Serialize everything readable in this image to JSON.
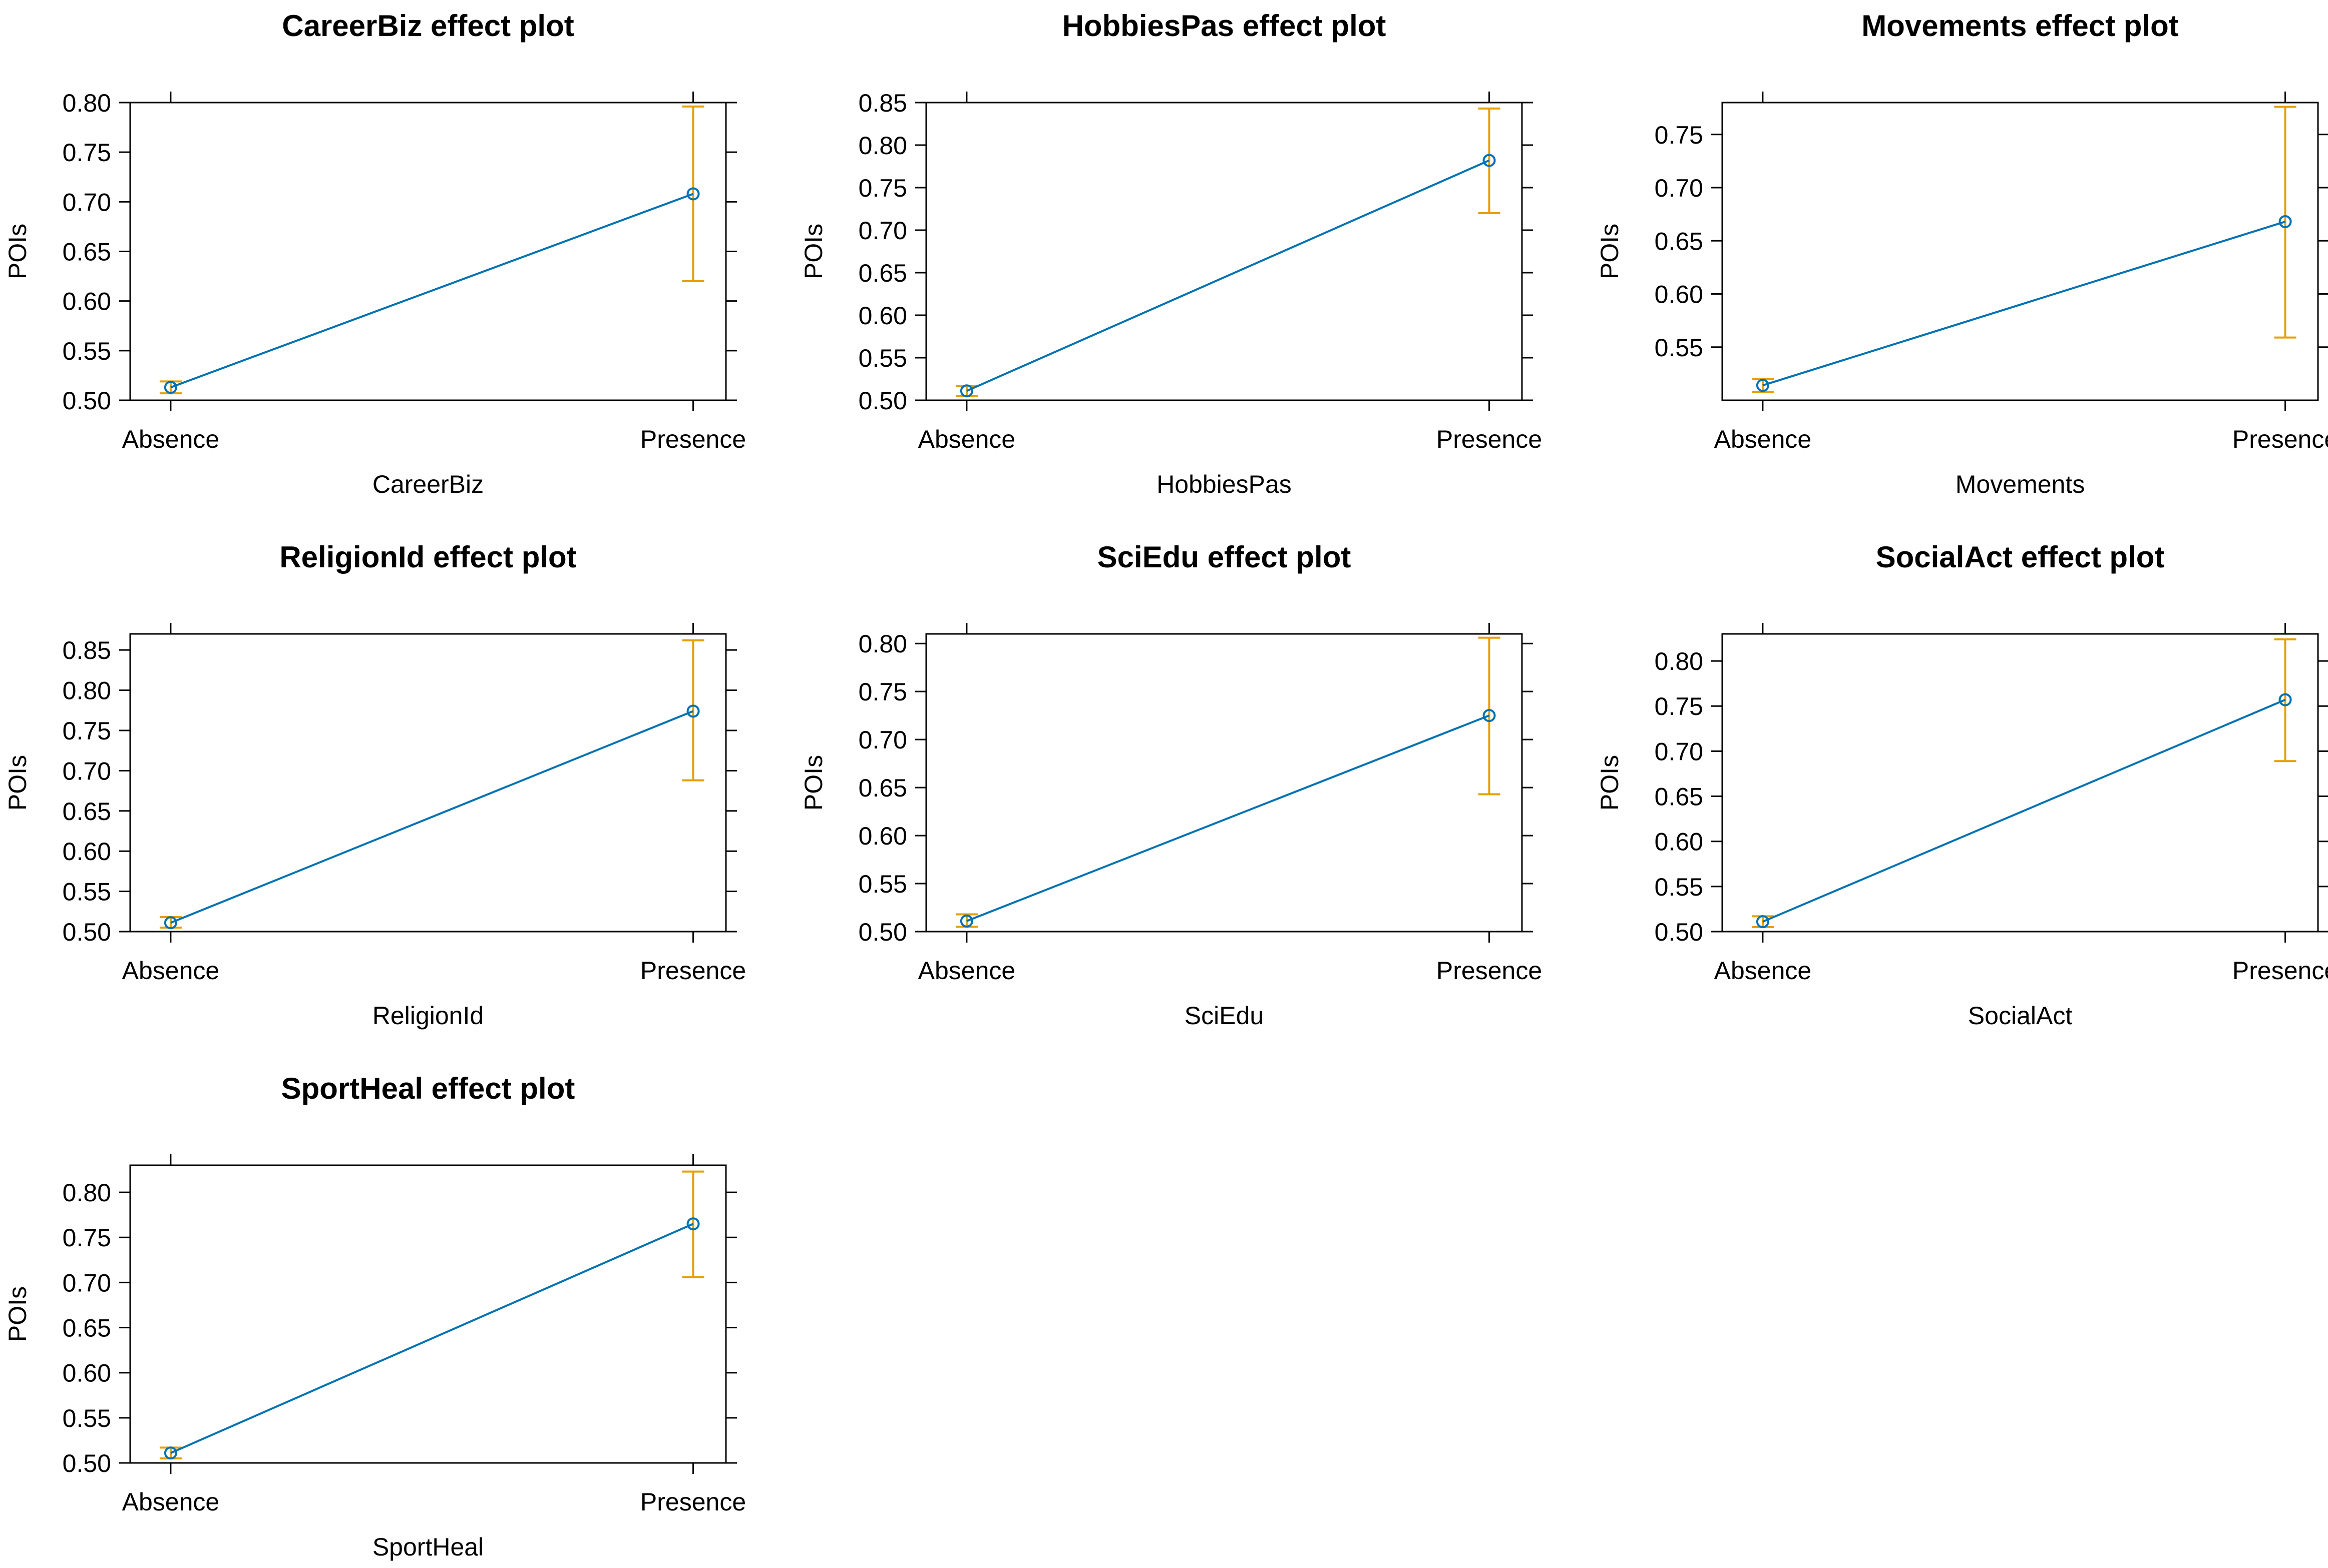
{
  "colors": {
    "line": "#0072B2",
    "ci": "#E69F00",
    "point": "#0072B2",
    "axis": "#000000",
    "background": "#ffffff"
  },
  "chart_data": [
    {
      "type": "line",
      "title": "CareerBiz effect plot",
      "xlabel": "CareerBiz",
      "ylabel": "POIs",
      "categories": [
        "Absence",
        "Presence"
      ],
      "values": [
        0.513,
        0.708
      ],
      "lower": [
        0.507,
        0.62
      ],
      "upper": [
        0.519,
        0.796
      ],
      "ylim": [
        0.5,
        0.8
      ],
      "yticks": [
        "0.50",
        "0.55",
        "0.60",
        "0.65",
        "0.70",
        "0.75",
        "0.80"
      ]
    },
    {
      "type": "line",
      "title": "HobbiesPas effect plot",
      "xlabel": "HobbiesPas",
      "ylabel": "POIs",
      "categories": [
        "Absence",
        "Presence"
      ],
      "values": [
        0.511,
        0.782
      ],
      "lower": [
        0.505,
        0.72
      ],
      "upper": [
        0.517,
        0.843
      ],
      "ylim": [
        0.5,
        0.85
      ],
      "yticks": [
        "0.50",
        "0.55",
        "0.60",
        "0.65",
        "0.70",
        "0.75",
        "0.80",
        "0.85"
      ]
    },
    {
      "type": "line",
      "title": "Movements effect plot",
      "xlabel": "Movements",
      "ylabel": "POIs",
      "categories": [
        "Absence",
        "Presence"
      ],
      "values": [
        0.514,
        0.668
      ],
      "lower": [
        0.508,
        0.559
      ],
      "upper": [
        0.52,
        0.776
      ],
      "ylim": [
        0.5,
        0.78
      ],
      "yticks": [
        "0.55",
        "0.60",
        "0.65",
        "0.70",
        "0.75"
      ]
    },
    {
      "type": "line",
      "title": "ReligionId effect plot",
      "xlabel": "ReligionId",
      "ylabel": "POIs",
      "categories": [
        "Absence",
        "Presence"
      ],
      "values": [
        0.511,
        0.774
      ],
      "lower": [
        0.505,
        0.688
      ],
      "upper": [
        0.518,
        0.862
      ],
      "ylim": [
        0.5,
        0.87
      ],
      "yticks": [
        "0.50",
        "0.55",
        "0.60",
        "0.65",
        "0.70",
        "0.75",
        "0.80",
        "0.85"
      ]
    },
    {
      "type": "line",
      "title": "SciEdu effect plot",
      "xlabel": "SciEdu",
      "ylabel": "POIs",
      "categories": [
        "Absence",
        "Presence"
      ],
      "values": [
        0.511,
        0.725
      ],
      "lower": [
        0.505,
        0.643
      ],
      "upper": [
        0.518,
        0.806
      ],
      "ylim": [
        0.5,
        0.81
      ],
      "yticks": [
        "0.50",
        "0.55",
        "0.60",
        "0.65",
        "0.70",
        "0.75",
        "0.80"
      ]
    },
    {
      "type": "line",
      "title": "SocialAct effect plot",
      "xlabel": "SocialAct",
      "ylabel": "POIs",
      "categories": [
        "Absence",
        "Presence"
      ],
      "values": [
        0.511,
        0.757
      ],
      "lower": [
        0.505,
        0.689
      ],
      "upper": [
        0.517,
        0.824
      ],
      "ylim": [
        0.5,
        0.83
      ],
      "yticks": [
        "0.50",
        "0.55",
        "0.60",
        "0.65",
        "0.70",
        "0.75",
        "0.80"
      ]
    },
    {
      "type": "line",
      "title": "SportHeal effect plot",
      "xlabel": "SportHeal",
      "ylabel": "POIs",
      "categories": [
        "Absence",
        "Presence"
      ],
      "values": [
        0.511,
        0.765
      ],
      "lower": [
        0.505,
        0.706
      ],
      "upper": [
        0.517,
        0.823
      ],
      "ylim": [
        0.5,
        0.83
      ],
      "yticks": [
        "0.50",
        "0.55",
        "0.60",
        "0.65",
        "0.70",
        "0.75",
        "0.80"
      ]
    }
  ]
}
